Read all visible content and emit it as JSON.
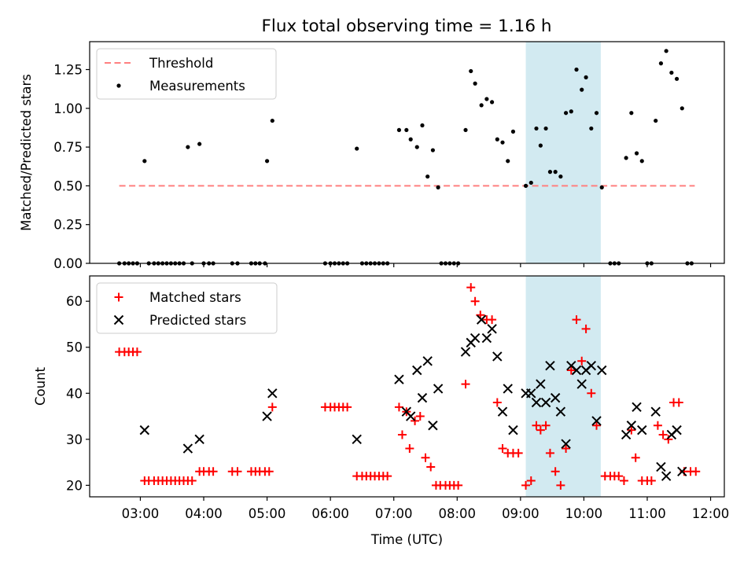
{
  "title": "Flux total observing time = 1.16 h",
  "colors": {
    "threshold": "#ff7f7f",
    "measurement": "#000000",
    "matched": "#ff0000",
    "predicted": "#000000",
    "span": "#add8e6"
  },
  "chart_data": [
    {
      "type": "scatter",
      "ylabel": "Matched/Predicted stars",
      "xlim": [
        "02:12",
        "12:13"
      ],
      "ylim": [
        0,
        1.43
      ],
      "yticks": [
        0,
        0.25,
        0.5,
        0.75,
        1.0,
        1.25
      ],
      "ytick_labels": [
        "0.00",
        "0.25",
        "0.50",
        "0.75",
        "1.00",
        "1.25"
      ],
      "highlight_span": [
        "09:05",
        "10:16"
      ],
      "legend_position": "upper left",
      "threshold": {
        "name": "Threshold",
        "y": 0.5,
        "x_range": [
          "02:40",
          "11:45"
        ]
      },
      "series": [
        {
          "name": "Measurements",
          "points": [
            [
              "02:40",
              0
            ],
            [
              "02:45",
              0
            ],
            [
              "02:49",
              0
            ],
            [
              "02:53",
              0
            ],
            [
              "02:57",
              0
            ],
            [
              "03:04",
              0.66
            ],
            [
              "03:08",
              0
            ],
            [
              "03:13",
              0
            ],
            [
              "03:17",
              0
            ],
            [
              "03:21",
              0
            ],
            [
              "03:25",
              0
            ],
            [
              "03:29",
              0
            ],
            [
              "03:33",
              0
            ],
            [
              "03:37",
              0
            ],
            [
              "03:41",
              0
            ],
            [
              "03:45",
              0.75
            ],
            [
              "03:49",
              0
            ],
            [
              "03:56",
              0.77
            ],
            [
              "04:00",
              0
            ],
            [
              "04:05",
              0
            ],
            [
              "04:09",
              0
            ],
            [
              "04:27",
              0
            ],
            [
              "04:32",
              0
            ],
            [
              "04:45",
              0
            ],
            [
              "04:49",
              0
            ],
            [
              "04:53",
              0
            ],
            [
              "04:58",
              0
            ],
            [
              "05:00",
              0.66
            ],
            [
              "05:05",
              0.92
            ],
            [
              "05:55",
              0
            ],
            [
              "06:00",
              0
            ],
            [
              "06:04",
              0
            ],
            [
              "06:08",
              0
            ],
            [
              "06:12",
              0
            ],
            [
              "06:16",
              0
            ],
            [
              "06:25",
              0.74
            ],
            [
              "06:30",
              0
            ],
            [
              "06:34",
              0
            ],
            [
              "06:38",
              0
            ],
            [
              "06:42",
              0
            ],
            [
              "06:46",
              0
            ],
            [
              "06:50",
              0
            ],
            [
              "06:54",
              0
            ],
            [
              "07:05",
              0.86
            ],
            [
              "07:12",
              0.86
            ],
            [
              "07:16",
              0.8
            ],
            [
              "07:22",
              0.75
            ],
            [
              "07:27",
              0.89
            ],
            [
              "07:32",
              0.56
            ],
            [
              "07:37",
              0.73
            ],
            [
              "07:42",
              0.49
            ],
            [
              "07:45",
              0
            ],
            [
              "07:49",
              0
            ],
            [
              "07:53",
              0
            ],
            [
              "07:57",
              0
            ],
            [
              "08:01",
              0
            ],
            [
              "08:08",
              0.86
            ],
            [
              "08:13",
              1.24
            ],
            [
              "08:17",
              1.16
            ],
            [
              "08:23",
              1.02
            ],
            [
              "08:28",
              1.06
            ],
            [
              "08:33",
              1.04
            ],
            [
              "08:38",
              0.8
            ],
            [
              "08:43",
              0.78
            ],
            [
              "08:48",
              0.66
            ],
            [
              "08:53",
              0.85
            ],
            [
              "09:05",
              0.5
            ],
            [
              "09:10",
              0.52
            ],
            [
              "09:15",
              0.87
            ],
            [
              "09:19",
              0.76
            ],
            [
              "09:24",
              0.87
            ],
            [
              "09:28",
              0.59
            ],
            [
              "09:33",
              0.59
            ],
            [
              "09:38",
              0.56
            ],
            [
              "09:43",
              0.97
            ],
            [
              "09:48",
              0.98
            ],
            [
              "09:53",
              1.25
            ],
            [
              "09:58",
              1.12
            ],
            [
              "10:02",
              1.2
            ],
            [
              "10:07",
              0.87
            ],
            [
              "10:12",
              0.97
            ],
            [
              "10:17",
              0.49
            ],
            [
              "10:25",
              0
            ],
            [
              "10:29",
              0
            ],
            [
              "10:33",
              0
            ],
            [
              "10:40",
              0.68
            ],
            [
              "10:45",
              0.97
            ],
            [
              "10:50",
              0.71
            ],
            [
              "10:55",
              0.66
            ],
            [
              "11:00",
              0
            ],
            [
              "11:04",
              0
            ],
            [
              "11:08",
              0.92
            ],
            [
              "11:13",
              1.29
            ],
            [
              "11:18",
              1.37
            ],
            [
              "11:23",
              1.23
            ],
            [
              "11:28",
              1.19
            ],
            [
              "11:33",
              1.0
            ],
            [
              "11:38",
              0
            ],
            [
              "11:42",
              0
            ]
          ]
        }
      ]
    },
    {
      "type": "scatter",
      "xlabel": "Time (UTC)",
      "ylabel": "Count",
      "xlim": [
        "02:12",
        "12:13"
      ],
      "ylim": [
        17.5,
        65.5
      ],
      "xticks": [
        "03:00",
        "04:00",
        "05:00",
        "06:00",
        "07:00",
        "08:00",
        "09:00",
        "10:00",
        "11:00",
        "12:00"
      ],
      "yticks": [
        20,
        30,
        40,
        50,
        60
      ],
      "ytick_labels": [
        "20",
        "30",
        "40",
        "50",
        "60"
      ],
      "highlight_span": [
        "09:05",
        "10:16"
      ],
      "legend_position": "upper left",
      "series": [
        {
          "name": "Matched stars",
          "marker": "+",
          "points": [
            [
              "02:40",
              49
            ],
            [
              "02:45",
              49
            ],
            [
              "02:49",
              49
            ],
            [
              "02:53",
              49
            ],
            [
              "02:57",
              49
            ],
            [
              "03:04",
              21
            ],
            [
              "03:08",
              21
            ],
            [
              "03:13",
              21
            ],
            [
              "03:17",
              21
            ],
            [
              "03:21",
              21
            ],
            [
              "03:25",
              21
            ],
            [
              "03:29",
              21
            ],
            [
              "03:33",
              21
            ],
            [
              "03:37",
              21
            ],
            [
              "03:41",
              21
            ],
            [
              "03:45",
              21
            ],
            [
              "03:49",
              21
            ],
            [
              "03:56",
              23
            ],
            [
              "04:00",
              23
            ],
            [
              "04:05",
              23
            ],
            [
              "04:09",
              23
            ],
            [
              "04:27",
              23
            ],
            [
              "04:32",
              23
            ],
            [
              "04:45",
              23
            ],
            [
              "04:49",
              23
            ],
            [
              "04:53",
              23
            ],
            [
              "04:58",
              23
            ],
            [
              "05:02",
              23
            ],
            [
              "05:05",
              37
            ],
            [
              "05:55",
              37
            ],
            [
              "06:00",
              37
            ],
            [
              "06:04",
              37
            ],
            [
              "06:08",
              37
            ],
            [
              "06:12",
              37
            ],
            [
              "06:16",
              37
            ],
            [
              "06:25",
              22
            ],
            [
              "06:30",
              22
            ],
            [
              "06:34",
              22
            ],
            [
              "06:38",
              22
            ],
            [
              "06:42",
              22
            ],
            [
              "06:46",
              22
            ],
            [
              "06:50",
              22
            ],
            [
              "06:54",
              22
            ],
            [
              "07:05",
              37
            ],
            [
              "07:08",
              31
            ],
            [
              "07:12",
              36
            ],
            [
              "07:15",
              28
            ],
            [
              "07:20",
              34
            ],
            [
              "07:25",
              35
            ],
            [
              "07:30",
              26
            ],
            [
              "07:35",
              24
            ],
            [
              "07:40",
              20
            ],
            [
              "07:44",
              20
            ],
            [
              "07:49",
              20
            ],
            [
              "07:53",
              20
            ],
            [
              "07:57",
              20
            ],
            [
              "08:01",
              20
            ],
            [
              "08:08",
              42
            ],
            [
              "08:13",
              63
            ],
            [
              "08:17",
              60
            ],
            [
              "08:22",
              57
            ],
            [
              "08:28",
              56
            ],
            [
              "08:33",
              56
            ],
            [
              "08:38",
              38
            ],
            [
              "08:43",
              28
            ],
            [
              "08:48",
              27
            ],
            [
              "08:53",
              27
            ],
            [
              "08:58",
              27
            ],
            [
              "09:05",
              20
            ],
            [
              "09:10",
              21
            ],
            [
              "09:15",
              33
            ],
            [
              "09:19",
              32
            ],
            [
              "09:24",
              33
            ],
            [
              "09:28",
              27
            ],
            [
              "09:33",
              23
            ],
            [
              "09:38",
              20
            ],
            [
              "09:43",
              28
            ],
            [
              "09:48",
              45
            ],
            [
              "09:53",
              56
            ],
            [
              "09:58",
              47
            ],
            [
              "10:02",
              54
            ],
            [
              "10:07",
              40
            ],
            [
              "10:12",
              33
            ],
            [
              "10:20",
              22
            ],
            [
              "10:25",
              22
            ],
            [
              "10:29",
              22
            ],
            [
              "10:33",
              22
            ],
            [
              "10:38",
              21
            ],
            [
              "10:45",
              32
            ],
            [
              "10:49",
              26
            ],
            [
              "10:55",
              21
            ],
            [
              "11:00",
              21
            ],
            [
              "11:04",
              21
            ],
            [
              "11:10",
              33
            ],
            [
              "11:15",
              31
            ],
            [
              "11:20",
              30
            ],
            [
              "11:25",
              38
            ],
            [
              "11:30",
              38
            ],
            [
              "11:35",
              23
            ],
            [
              "11:41",
              23
            ],
            [
              "11:46",
              23
            ]
          ]
        },
        {
          "name": "Predicted stars",
          "marker": "x",
          "points": [
            [
              "03:04",
              32
            ],
            [
              "03:45",
              28
            ],
            [
              "03:56",
              30
            ],
            [
              "05:00",
              35
            ],
            [
              "05:05",
              40
            ],
            [
              "06:25",
              30
            ],
            [
              "07:05",
              43
            ],
            [
              "07:12",
              36
            ],
            [
              "07:16",
              35
            ],
            [
              "07:22",
              45
            ],
            [
              "07:27",
              39
            ],
            [
              "07:32",
              47
            ],
            [
              "07:37",
              33
            ],
            [
              "07:42",
              41
            ],
            [
              "08:08",
              49
            ],
            [
              "08:13",
              51
            ],
            [
              "08:17",
              52
            ],
            [
              "08:23",
              56
            ],
            [
              "08:28",
              52
            ],
            [
              "08:33",
              54
            ],
            [
              "08:38",
              48
            ],
            [
              "08:43",
              36
            ],
            [
              "08:48",
              41
            ],
            [
              "08:53",
              32
            ],
            [
              "09:05",
              40
            ],
            [
              "09:10",
              40
            ],
            [
              "09:15",
              38
            ],
            [
              "09:19",
              42
            ],
            [
              "09:24",
              38
            ],
            [
              "09:28",
              46
            ],
            [
              "09:33",
              39
            ],
            [
              "09:38",
              36
            ],
            [
              "09:43",
              29
            ],
            [
              "09:48",
              46
            ],
            [
              "09:53",
              45
            ],
            [
              "09:58",
              42
            ],
            [
              "10:02",
              45
            ],
            [
              "10:07",
              46
            ],
            [
              "10:12",
              34
            ],
            [
              "10:17",
              45
            ],
            [
              "10:40",
              31
            ],
            [
              "10:45",
              33
            ],
            [
              "10:50",
              37
            ],
            [
              "10:55",
              32
            ],
            [
              "11:08",
              36
            ],
            [
              "11:13",
              24
            ],
            [
              "11:18",
              22
            ],
            [
              "11:23",
              31
            ],
            [
              "11:28",
              32
            ],
            [
              "11:33",
              23
            ]
          ]
        }
      ]
    }
  ]
}
